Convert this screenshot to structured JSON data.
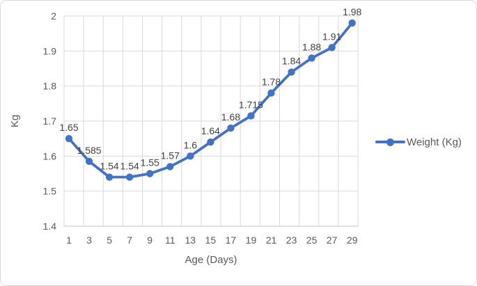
{
  "chart_data": {
    "type": "line",
    "title": "",
    "categories": [
      1,
      3,
      5,
      7,
      9,
      11,
      13,
      15,
      17,
      19,
      21,
      23,
      25,
      27,
      29
    ],
    "series": [
      {
        "name": "Weight (Kg)",
        "values": [
          1.65,
          1.585,
          1.54,
          1.54,
          1.55,
          1.57,
          1.6,
          1.64,
          1.68,
          1.715,
          1.78,
          1.84,
          1.88,
          1.91,
          1.98
        ],
        "data_labels": [
          "1.65",
          "1.585",
          "1.54",
          "1.54",
          "1.55",
          "1.57",
          "1.6",
          "1.64",
          "1.68",
          "1.715",
          "1.78",
          "1.84",
          "1.88",
          "1.91",
          "1.98"
        ]
      }
    ],
    "xlabel": "Age (Days)",
    "ylabel": "Kg",
    "ylim": [
      1.4,
      2.0
    ],
    "yticks": [
      "1.4",
      "1.5",
      "1.6",
      "1.7",
      "1.8",
      "1.9",
      "2"
    ],
    "xticks": [
      "1",
      "3",
      "5",
      "7",
      "9",
      "11",
      "13",
      "15",
      "17",
      "19",
      "21",
      "23",
      "25",
      "27",
      "29"
    ],
    "grid": true,
    "legend_position": "right",
    "data_label_position": "above",
    "colors": {
      "series": "#4472C4",
      "gridline": "#D9D9D9",
      "axis_line": "#CFCFCF",
      "tick_label": "#595959",
      "data_label": "#404040",
      "axis_title": "#595959",
      "legend_text": "#595959",
      "frame_border": "#D9D9D9",
      "background": "#FFFFFF"
    }
  }
}
